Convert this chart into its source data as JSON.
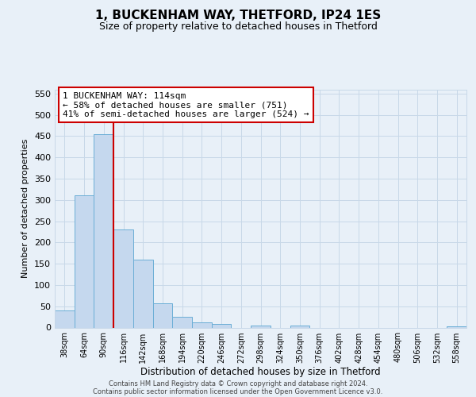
{
  "title": "1, BUCKENHAM WAY, THETFORD, IP24 1ES",
  "subtitle": "Size of property relative to detached houses in Thetford",
  "xlabel": "Distribution of detached houses by size in Thetford",
  "ylabel": "Number of detached properties",
  "bin_labels": [
    "38sqm",
    "64sqm",
    "90sqm",
    "116sqm",
    "142sqm",
    "168sqm",
    "194sqm",
    "220sqm",
    "246sqm",
    "272sqm",
    "298sqm",
    "324sqm",
    "350sqm",
    "376sqm",
    "402sqm",
    "428sqm",
    "454sqm",
    "480sqm",
    "506sqm",
    "532sqm",
    "558sqm"
  ],
  "bar_values": [
    40,
    310,
    455,
    230,
    160,
    57,
    25,
    12,
    9,
    0,
    5,
    0,
    5,
    0,
    0,
    0,
    0,
    0,
    0,
    0,
    3
  ],
  "bar_color": "#c5d8ee",
  "bar_edge_color": "#6baed6",
  "vline_color": "#cc0000",
  "annotation_line1": "1 BUCKENHAM WAY: 114sqm",
  "annotation_line2": "← 58% of detached houses are smaller (751)",
  "annotation_line3": "41% of semi-detached houses are larger (524) →",
  "annotation_box_color": "#ffffff",
  "annotation_box_edge": "#cc0000",
  "grid_color": "#c8d8e8",
  "bg_color": "#e8f0f8",
  "footer1": "Contains HM Land Registry data © Crown copyright and database right 2024.",
  "footer2": "Contains public sector information licensed under the Open Government Licence v3.0.",
  "ylim": [
    0,
    560
  ],
  "yticks": [
    0,
    50,
    100,
    150,
    200,
    250,
    300,
    350,
    400,
    450,
    500,
    550
  ]
}
